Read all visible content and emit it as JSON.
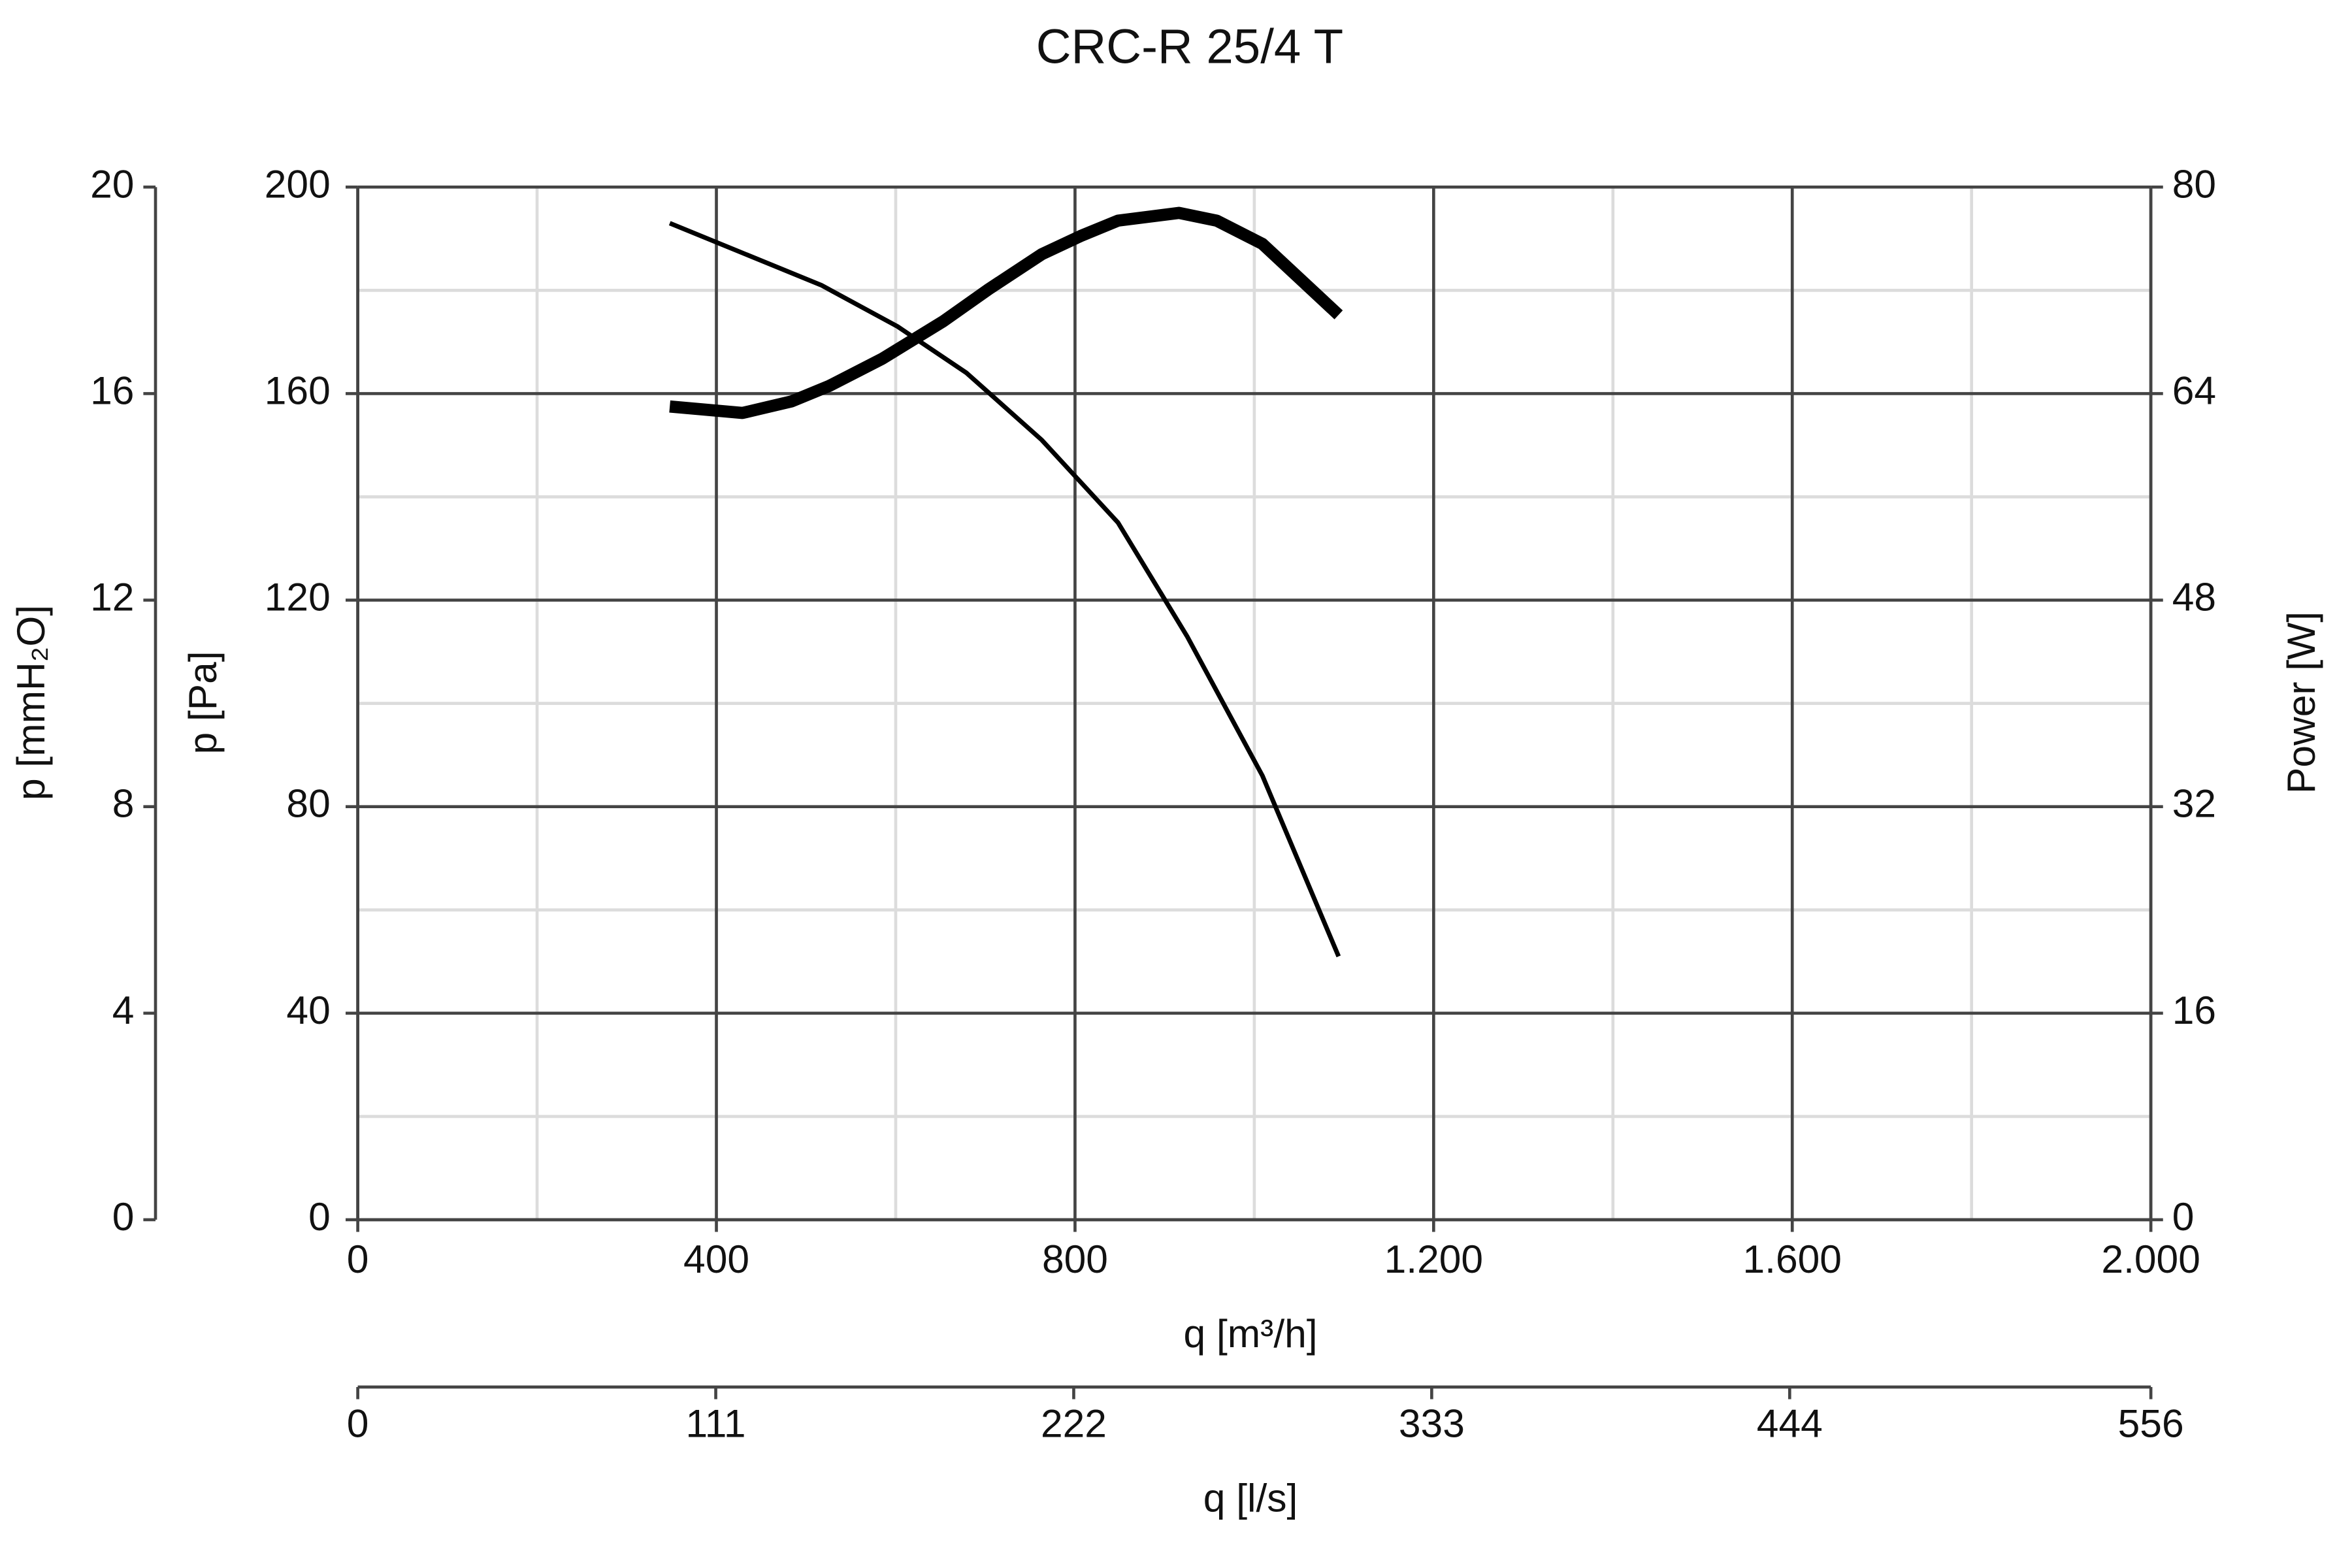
{
  "chart_data": {
    "type": "line",
    "title": "CRC-R 25/4 T",
    "x_label": "q [m³/h]",
    "y_label": "p [Pa]",
    "y2_label": "Power [W]",
    "y3_label": "p [mmH₂O]",
    "x2_label": "q [l/s]",
    "xlim": [
      0,
      2000
    ],
    "xticks": [
      0,
      400,
      800,
      {
        "value": 1200,
        "label": "1.200"
      },
      {
        "value": 1600,
        "label": "1.600"
      },
      {
        "value": 2000,
        "label": "2.000"
      }
    ],
    "x_minor_ticks": [
      200,
      600,
      1000,
      1400,
      1800
    ],
    "ylim": [
      0,
      200
    ],
    "yticks": [
      0,
      40,
      80,
      120,
      160,
      200
    ],
    "y_minor_ticks": [
      20,
      60,
      100,
      140,
      180
    ],
    "y2lim": [
      0,
      80
    ],
    "y2ticks": [
      0,
      16,
      32,
      48,
      64,
      80
    ],
    "y3lim": [
      0,
      20
    ],
    "y3ticks": [
      0,
      4,
      8,
      12,
      16,
      20
    ],
    "x2lim": [
      0,
      556
    ],
    "x2ticks": [
      0,
      111,
      222,
      333,
      444,
      556
    ],
    "grid": true,
    "series": [
      {
        "color": "#000000",
        "line_width": 3,
        "x": [
          348,
          517,
          602,
          679,
          763,
          848,
          925,
          1009,
          1094
        ],
        "values": [
          193,
          181,
          173,
          164,
          151,
          135,
          113,
          86,
          51
        ]
      },
      {
        "color": "#000000",
        "line_width": 8,
        "axis": "y2",
        "x": [
          348,
          429,
          484,
          526,
          585,
          653,
          704,
          763,
          806,
          848,
          916,
          958,
          1009,
          1094
        ],
        "values": [
          63.0,
          62.5,
          63.4,
          64.6,
          66.7,
          69.6,
          72.1,
          74.8,
          76.2,
          77.4,
          78.0,
          77.4,
          75.6,
          70.1
        ]
      }
    ]
  }
}
